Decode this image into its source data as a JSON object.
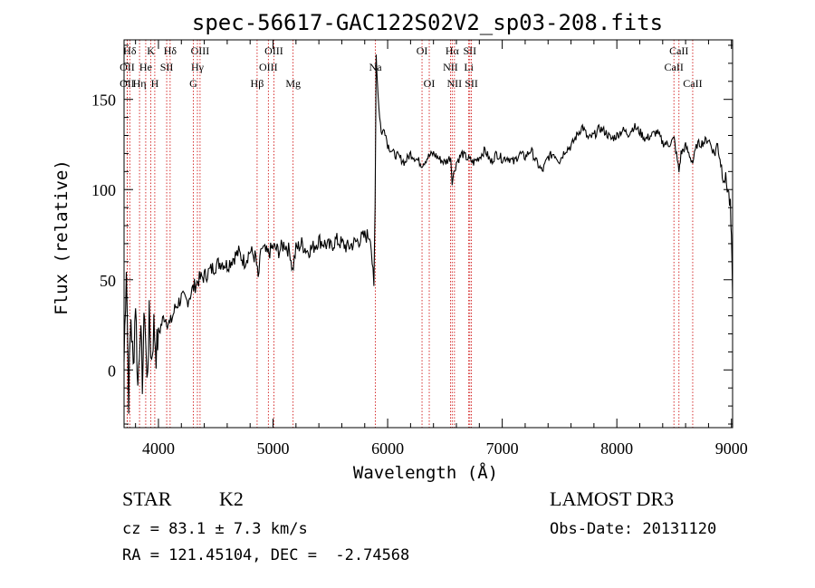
{
  "chart_data": {
    "type": "line",
    "title": "spec-56617-GAC122S02V2_sp03-208.fits",
    "xlabel": "Wavelength (Å)",
    "ylabel": "Flux (relative)",
    "xlim": [
      3700,
      9010
    ],
    "ylim": [
      -32,
      183
    ],
    "xticks": [
      4000,
      5000,
      6000,
      7000,
      8000,
      9000
    ],
    "yticks": [
      0,
      50,
      100,
      150
    ],
    "series": [
      {
        "name": "flux",
        "x": [
          3700,
          3720,
          3740,
          3760,
          3780,
          3800,
          3820,
          3840,
          3860,
          3880,
          3900,
          3920,
          3940,
          3960,
          3980,
          4000,
          4050,
          4100,
          4150,
          4200,
          4250,
          4300,
          4350,
          4400,
          4450,
          4500,
          4550,
          4600,
          4650,
          4700,
          4750,
          4800,
          4850,
          4870,
          4900,
          4950,
          5000,
          5050,
          5100,
          5150,
          5170,
          5200,
          5250,
          5300,
          5350,
          5400,
          5450,
          5500,
          5550,
          5600,
          5650,
          5700,
          5750,
          5800,
          5850,
          5880,
          5890,
          5900,
          5910,
          5930,
          5950,
          5970,
          6000,
          6050,
          6100,
          6150,
          6200,
          6250,
          6300,
          6350,
          6400,
          6450,
          6500,
          6550,
          6563,
          6600,
          6650,
          6700,
          6750,
          6800,
          6850,
          6900,
          6950,
          7000,
          7050,
          7100,
          7150,
          7200,
          7250,
          7300,
          7350,
          7400,
          7450,
          7500,
          7550,
          7600,
          7650,
          7700,
          7750,
          7800,
          7850,
          7900,
          7950,
          8000,
          8050,
          8100,
          8150,
          8200,
          8250,
          8300,
          8350,
          8400,
          8450,
          8500,
          8542,
          8560,
          8600,
          8662,
          8700,
          8750,
          8800,
          8850,
          8880,
          8900,
          8920,
          8950,
          8970,
          8990,
          9000,
          9010
        ],
        "y": [
          5,
          60,
          -15,
          30,
          0,
          40,
          -10,
          25,
          -5,
          35,
          -8,
          28,
          5,
          25,
          10,
          20,
          30,
          25,
          35,
          40,
          38,
          45,
          50,
          52,
          55,
          58,
          60,
          58,
          62,
          65,
          60,
          66,
          62,
          50,
          68,
          64,
          68,
          66,
          70,
          65,
          55,
          67,
          70,
          66,
          68,
          72,
          70,
          68,
          72,
          70,
          68,
          70,
          72,
          74,
          75,
          45,
          90,
          175,
          160,
          140,
          130,
          135,
          125,
          120,
          118,
          115,
          120,
          117,
          114,
          118,
          120,
          117,
          115,
          118,
          105,
          115,
          120,
          117,
          115,
          118,
          122,
          115,
          120,
          117,
          118,
          115,
          120,
          118,
          122,
          115,
          110,
          118,
          120,
          116,
          122,
          124,
          130,
          135,
          128,
          130,
          134,
          132,
          128,
          130,
          133,
          131,
          135,
          132,
          128,
          130,
          132,
          126,
          125,
          128,
          110,
          120,
          124,
          115,
          125,
          126,
          128,
          120,
          125,
          118,
          110,
          105,
          100,
          90,
          70,
          40
        ],
        "color": "#000000"
      }
    ],
    "line_markers": [
      {
        "label": "Hδ",
        "wavelength": 3750,
        "row": 0
      },
      {
        "label": "K",
        "wavelength": 3934,
        "row": 0
      },
      {
        "label": "Hδ",
        "wavelength": 4102,
        "row": 0
      },
      {
        "label": "OIII",
        "wavelength": 4363,
        "row": 0
      },
      {
        "label": "OIII",
        "wavelength": 5007,
        "row": 0
      },
      {
        "label": "OI",
        "wavelength": 6300,
        "row": 0
      },
      {
        "label": "Hα",
        "wavelength": 6563,
        "row": 0
      },
      {
        "label": "SII",
        "wavelength": 6717,
        "row": 0
      },
      {
        "label": "CaII",
        "wavelength": 8542,
        "row": 0
      },
      {
        "label": "OII",
        "wavelength": 3727,
        "row": 1
      },
      {
        "label": "He",
        "wavelength": 3889,
        "row": 1
      },
      {
        "label": "SII",
        "wavelength": 4072,
        "row": 1
      },
      {
        "label": "Hγ",
        "wavelength": 4340,
        "row": 1
      },
      {
        "label": "OIII",
        "wavelength": 4959,
        "row": 1
      },
      {
        "label": "Na",
        "wavelength": 5893,
        "row": 1
      },
      {
        "label": "NII",
        "wavelength": 6548,
        "row": 1
      },
      {
        "label": "Li",
        "wavelength": 6708,
        "row": 1
      },
      {
        "label": "CaII",
        "wavelength": 8498,
        "row": 1
      },
      {
        "label": "OII",
        "wavelength": 3727,
        "row": 2
      },
      {
        "label": "Hη",
        "wavelength": 3835,
        "row": 2
      },
      {
        "label": "H",
        "wavelength": 3968,
        "row": 2
      },
      {
        "label": "G",
        "wavelength": 4304,
        "row": 2
      },
      {
        "label": "Hβ",
        "wavelength": 4861,
        "row": 2
      },
      {
        "label": "Mg",
        "wavelength": 5175,
        "row": 2
      },
      {
        "label": "OI",
        "wavelength": 6363,
        "row": 2
      },
      {
        "label": "NII",
        "wavelength": 6583,
        "row": 2
      },
      {
        "label": "SII",
        "wavelength": 6731,
        "row": 2
      },
      {
        "label": "CaII",
        "wavelength": 8662,
        "row": 2
      }
    ],
    "grid": false
  },
  "info": {
    "object_class": "STAR",
    "subclass": "K2",
    "redshift_line": "cz = 83.1 ± 7.3 km/s",
    "coords_line": "RA = 121.45104, DEC =  -2.74568",
    "survey": "LAMOST DR3",
    "obs_date": "Obs-Date: 20131120"
  },
  "colors": {
    "marker_line": "#cc0000",
    "axis": "#000000",
    "spectrum": "#000000"
  }
}
